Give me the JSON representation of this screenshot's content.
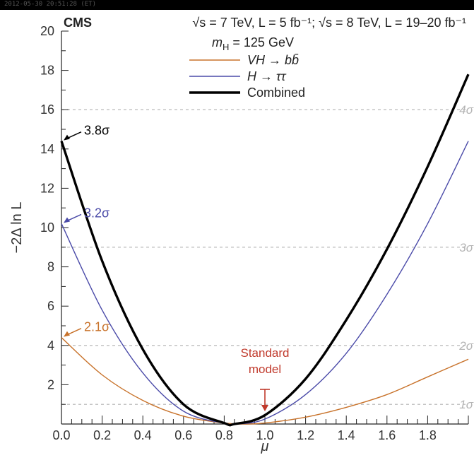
{
  "header": {
    "experiment": "CMS",
    "energy_label": "√s = 7 TeV, L = 5 fb⁻¹; √s = 8 TeV, L = 19–20 fb⁻¹"
  },
  "topbar_text": "2012-05-30 20:51:28 (ET)",
  "chart_data": {
    "type": "line",
    "xlabel": "μ",
    "ylabel": "−2Δ ln L",
    "xlim": [
      0,
      2.0
    ],
    "ylim": [
      0,
      20
    ],
    "x_ticks": [
      "0.0",
      "0.2",
      "0.4",
      "0.6",
      "0.8",
      "1.0",
      "1.2",
      "1.4",
      "1.6",
      "1.8"
    ],
    "y_ticks": [
      "2",
      "4",
      "6",
      "8",
      "10",
      "12",
      "14",
      "16",
      "18",
      "20"
    ],
    "legend_title": "m_H = 125 GeV",
    "series": [
      {
        "name": "VH → bb̄",
        "color": "#c8722a",
        "x": [
          0.0,
          0.2,
          0.4,
          0.6,
          0.8,
          0.9,
          1.0,
          1.2,
          1.4,
          1.6,
          1.8,
          2.0
        ],
        "y": [
          4.4,
          2.5,
          1.2,
          0.4,
          0.05,
          0.0,
          0.05,
          0.35,
          0.85,
          1.5,
          2.4,
          3.3
        ]
      },
      {
        "name": "H → ττ",
        "color": "#4a4aa8",
        "x": [
          0.0,
          0.2,
          0.4,
          0.6,
          0.8,
          0.86,
          1.0,
          1.2,
          1.4,
          1.6,
          1.8,
          2.0
        ],
        "y": [
          10.2,
          5.8,
          2.6,
          0.65,
          0.04,
          0.0,
          0.25,
          1.5,
          3.6,
          6.6,
          10.2,
          14.4
        ]
      },
      {
        "name": "Combined",
        "color": "#000000",
        "x": [
          0.0,
          0.2,
          0.4,
          0.6,
          0.8,
          0.85,
          1.0,
          1.2,
          1.4,
          1.6,
          1.8,
          2.0
        ],
        "y": [
          14.4,
          8.3,
          3.8,
          1.0,
          0.05,
          0.0,
          0.45,
          2.3,
          5.3,
          8.9,
          13.1,
          17.8
        ]
      }
    ],
    "endpoint_labels": [
      {
        "text": "3.8σ",
        "y": 14.4,
        "color": "#000000"
      },
      {
        "text": "3.2σ",
        "y": 10.2,
        "color": "#4a4aa8"
      },
      {
        "text": "2.1σ",
        "y": 4.4,
        "color": "#c8722a"
      }
    ],
    "sigma_lines": [
      {
        "label": "1σ",
        "y": 1
      },
      {
        "label": "2σ",
        "y": 4
      },
      {
        "label": "3σ",
        "y": 9
      },
      {
        "label": "4σ",
        "y": 16
      }
    ],
    "standard_model": {
      "text_line1": "Standard",
      "text_line2": "model",
      "x": 1.0,
      "color": "#c0392b"
    }
  }
}
